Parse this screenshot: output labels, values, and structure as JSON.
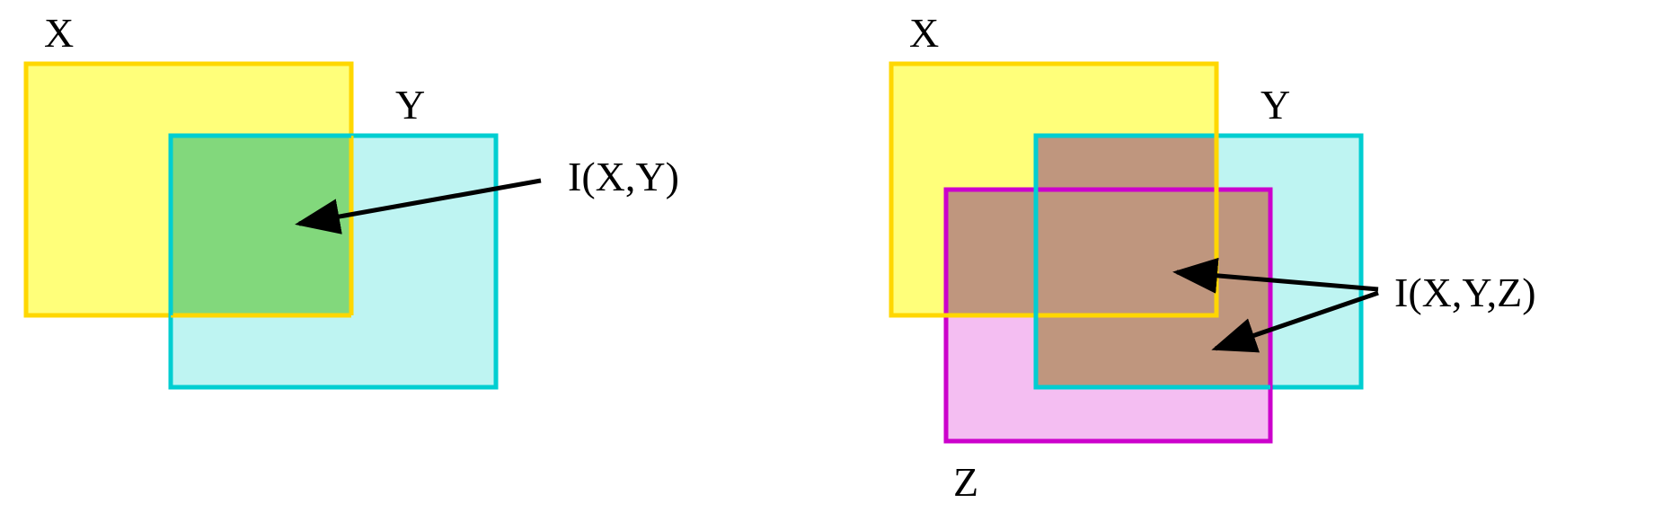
{
  "left_diagram": {
    "sets": [
      {
        "id": "X",
        "label": "X",
        "fill": "#FFFF7A",
        "stroke": "#FFD700"
      },
      {
        "id": "Y",
        "label": "Y",
        "fill": "#BEF4F2",
        "stroke": "#00CED1"
      }
    ],
    "overlap_fill": "#82D87C",
    "annotation": "I(X,Y)"
  },
  "right_diagram": {
    "sets": [
      {
        "id": "X",
        "label": "X",
        "fill": "#FFFF7A",
        "stroke": "#FFD700"
      },
      {
        "id": "Y",
        "label": "Y",
        "fill": "#BEF4F2",
        "stroke": "#00CED1"
      },
      {
        "id": "Z",
        "label": "Z",
        "fill": "#F4BEF2",
        "stroke": "#CC00CC"
      }
    ],
    "overlap_fill": "#BF967E",
    "annotation": "I(X,Y,Z)"
  },
  "arrow_color": "#000000"
}
